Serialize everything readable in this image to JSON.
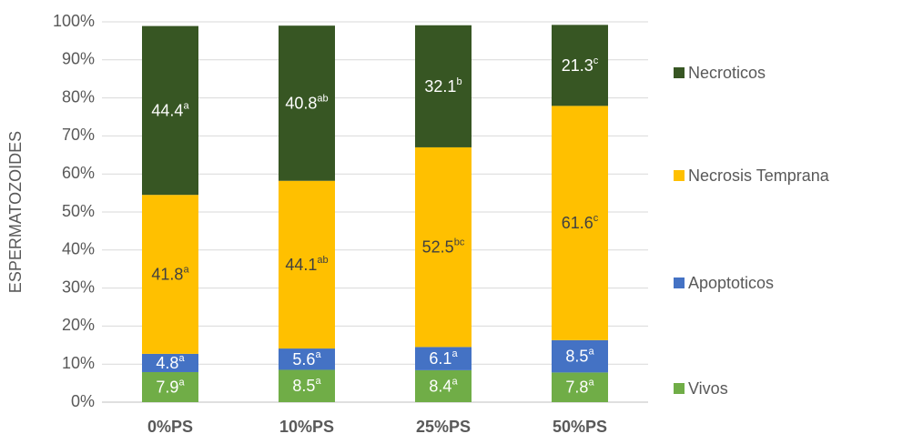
{
  "chart_data": {
    "type": "stacked_bar",
    "y_label": "ESPERMATOZOIDES",
    "categories": [
      "0%PS",
      "10%PS",
      "25%PS",
      "50%PS"
    ],
    "series": [
      {
        "name": "Vivos",
        "color": "#70ad47",
        "label_color": "#ffffff",
        "values": [
          7.9,
          8.5,
          8.4,
          7.8
        ],
        "superscripts": [
          "a",
          "a",
          "a",
          "a"
        ]
      },
      {
        "name": "Apoptoticos",
        "color": "#4472c4",
        "label_color": "#ffffff",
        "values": [
          4.8,
          5.6,
          6.1,
          8.5
        ],
        "superscripts": [
          "a",
          "a",
          "a",
          "a"
        ]
      },
      {
        "name": "Necrosis Temprana",
        "color": "#ffc000",
        "label_color": "#404040",
        "values": [
          41.8,
          44.1,
          52.5,
          61.6
        ],
        "superscripts": [
          "a",
          "ab",
          "bc",
          "c"
        ]
      },
      {
        "name": "Necroticos",
        "color": "#375623",
        "label_color": "#ffffff",
        "values": [
          44.4,
          40.8,
          32.1,
          21.3
        ],
        "superscripts": [
          "a",
          "ab",
          "b",
          "c"
        ]
      }
    ],
    "ylim": [
      0,
      100
    ],
    "yticks": [
      {
        "value": 0,
        "label": "0%"
      },
      {
        "value": 10,
        "label": "10%"
      },
      {
        "value": 20,
        "label": "20%"
      },
      {
        "value": 30,
        "label": "30%"
      },
      {
        "value": 40,
        "label": "40%"
      },
      {
        "value": 50,
        "label": "50%"
      },
      {
        "value": 60,
        "label": "60%"
      },
      {
        "value": 70,
        "label": "70%"
      },
      {
        "value": 80,
        "label": "80%"
      },
      {
        "value": 90,
        "label": "90%"
      },
      {
        "value": 100,
        "label": "100%"
      }
    ],
    "grid": true,
    "legend": "right"
  }
}
